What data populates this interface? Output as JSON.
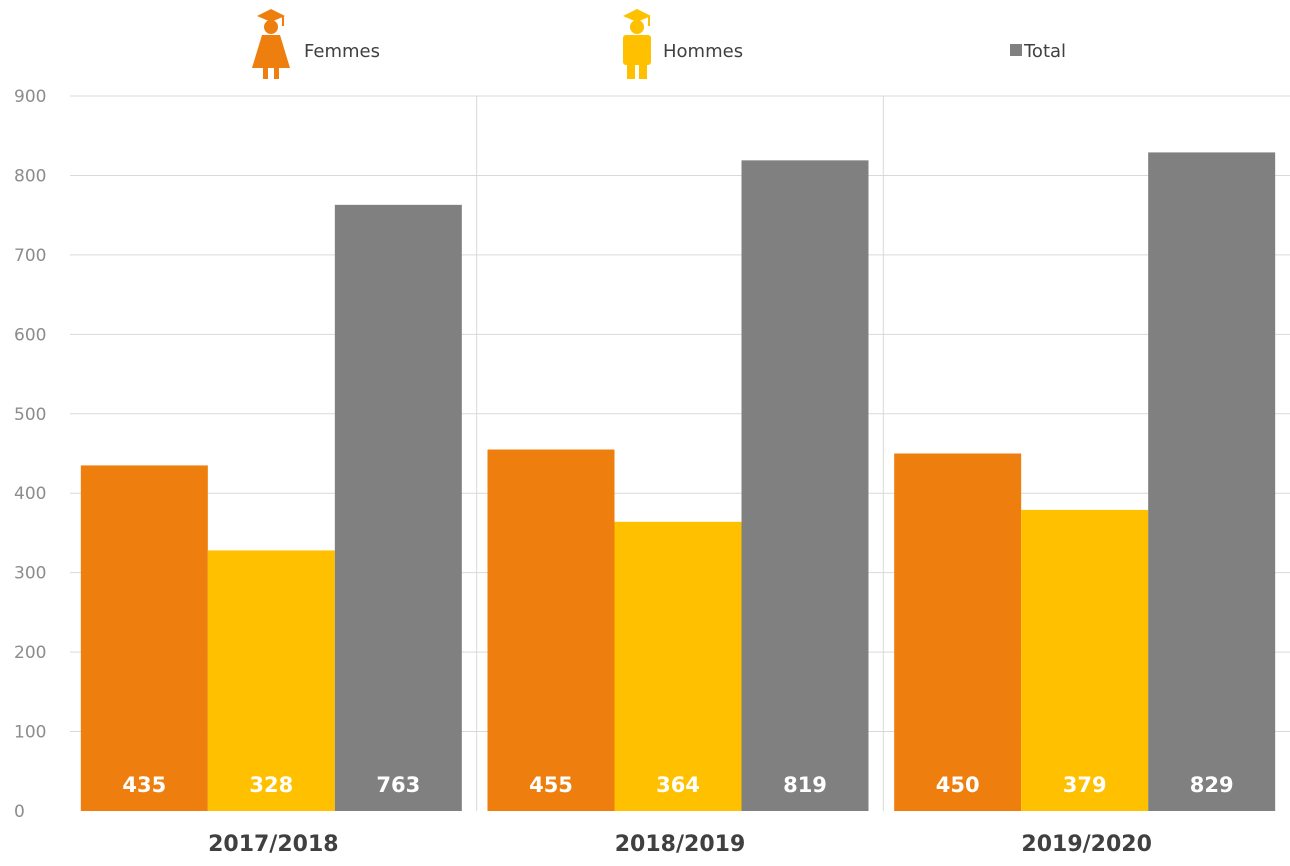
{
  "chart_data": {
    "type": "bar",
    "categories": [
      "2017/2018",
      "2018/2019",
      "2019/2020"
    ],
    "series": [
      {
        "name": "Femmes",
        "values": [
          435,
          455,
          450
        ],
        "color": "#EE7F0E",
        "icon": "graduate-woman-icon"
      },
      {
        "name": "Hommes",
        "values": [
          328,
          364,
          379
        ],
        "color": "#FFC000",
        "icon": "graduate-man-icon"
      },
      {
        "name": "Total",
        "values": [
          763,
          819,
          829
        ],
        "color": "#808080",
        "icon": "square-marker"
      }
    ],
    "ylim": [
      0,
      900
    ],
    "yticks": [
      0,
      100,
      200,
      300,
      400,
      500,
      600,
      700,
      800,
      900
    ],
    "grid": true,
    "legend_position": "top",
    "title": "",
    "xlabel": "",
    "ylabel": ""
  }
}
